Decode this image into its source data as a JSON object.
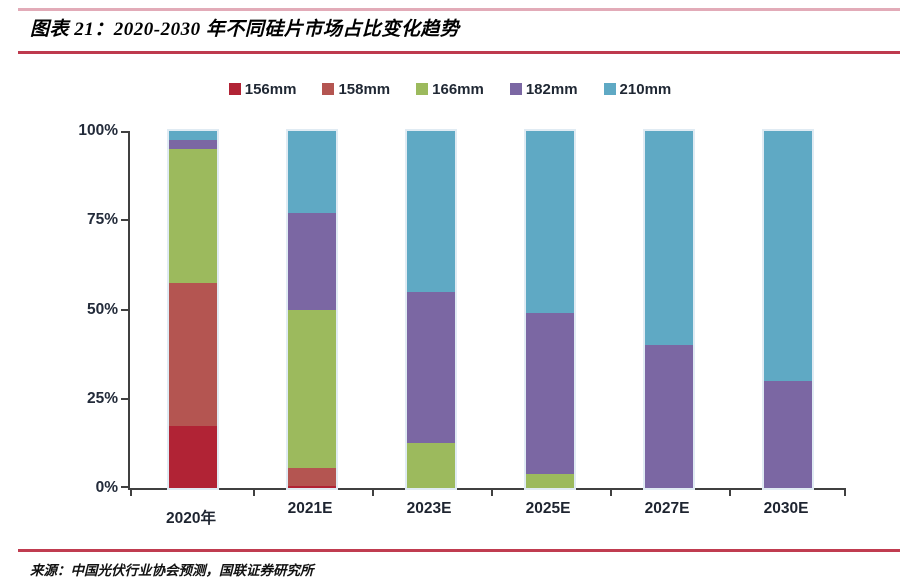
{
  "page": {
    "title": "图表 21：2020-2030 年不同硅片市场占比变化趋势",
    "source": "来源：中国光伏行业协会预测，国联证券研究所"
  },
  "colors": {
    "rule_top": "#e2abb8",
    "rule_title": "#be3a4e",
    "rule_bottom": "#c03c50",
    "axis": "#404040",
    "axis_label": "#232b3a",
    "legend_label": "#1f2733"
  },
  "chart_data": {
    "type": "bar",
    "stacked": true,
    "unit": "percent",
    "title": "2020-2030 年不同硅片市场占比变化趋势",
    "categories": [
      "2020年",
      "2021E",
      "2023E",
      "2025E",
      "2027E",
      "2030E"
    ],
    "series": [
      {
        "name": "156mm",
        "color": "#b12335",
        "values": [
          17.5,
          0.5,
          0,
          0,
          0,
          0
        ]
      },
      {
        "name": "158mm",
        "color": "#b45551",
        "values": [
          40,
          5,
          0,
          0,
          0,
          0
        ]
      },
      {
        "name": "166mm",
        "color": "#9cba5d",
        "values": [
          37.5,
          44.5,
          12.5,
          4,
          0,
          0
        ]
      },
      {
        "name": "182mm",
        "color": "#7b67a3",
        "values": [
          2.5,
          27,
          42.5,
          45,
          40,
          30
        ]
      },
      {
        "name": "210mm",
        "color": "#5fa9c4",
        "values": [
          2.5,
          23,
          45,
          51,
          60,
          70
        ]
      }
    ],
    "y_ticks": [
      "0%",
      "25%",
      "50%",
      "75%",
      "100%"
    ],
    "ylim": [
      0,
      100
    ],
    "legend_position": "top",
    "grid": false
  }
}
